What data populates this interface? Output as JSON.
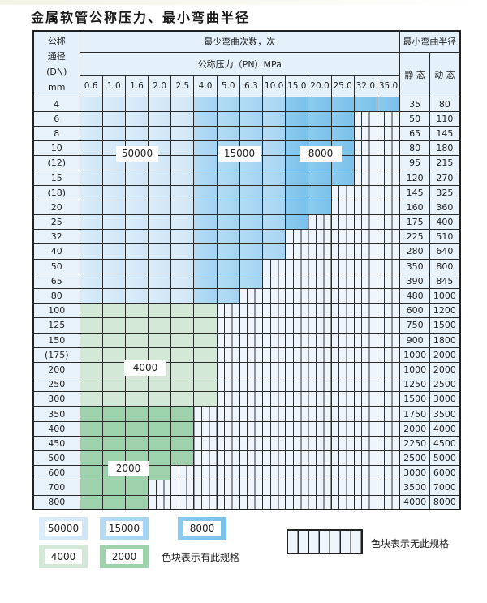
{
  "title": "金属软管公称压力、最小弯曲半径",
  "header": {
    "dn_label_lines": [
      "公称",
      "通径",
      "(DN)",
      "mm"
    ],
    "cycles_label": "最少弯曲次数，次",
    "pressure_label": "公称压力（PN）MPa",
    "radius_label": "最小弯曲半径",
    "static_label": "静 态",
    "dynamic_label": "动 态",
    "pressures": [
      "0.6",
      "1.0",
      "1.6",
      "2.0",
      "2.5",
      "4.0",
      "5.0",
      "6.3",
      "10.0",
      "15.0",
      "20.0",
      "25.0",
      "32.0",
      "35.0"
    ]
  },
  "zone_colors": {
    "z50000": "#d6eaf8",
    "z15000": "#aad7f3",
    "z8000": "#80c5ec",
    "z4000": "#d3e8d6",
    "z2000": "#9ed2ac",
    "none": "#eef5fc"
  },
  "rows": [
    {
      "dn": "4",
      "runs": [
        [
          "z50000",
          5
        ],
        [
          "z15000",
          4
        ],
        [
          "z8000",
          5
        ]
      ],
      "static": "35",
      "dynamic": "80"
    },
    {
      "dn": "6",
      "runs": [
        [
          "z50000",
          5
        ],
        [
          "z15000",
          4
        ],
        [
          "z8000",
          3
        ]
      ],
      "static": "50",
      "dynamic": "110"
    },
    {
      "dn": "8",
      "runs": [
        [
          "z50000",
          5
        ],
        [
          "z15000",
          4
        ],
        [
          "z8000",
          3
        ]
      ],
      "static": "65",
      "dynamic": "145"
    },
    {
      "dn": "10",
      "runs": [
        [
          "z50000",
          5
        ],
        [
          "z15000",
          4
        ],
        [
          "z8000",
          3
        ]
      ],
      "static": "80",
      "dynamic": "180"
    },
    {
      "dn": "(12)",
      "runs": [
        [
          "z50000",
          5
        ],
        [
          "z15000",
          4
        ],
        [
          "z8000",
          3
        ]
      ],
      "static": "95",
      "dynamic": "215"
    },
    {
      "dn": "15",
      "runs": [
        [
          "z50000",
          5
        ],
        [
          "z15000",
          4
        ],
        [
          "z8000",
          3
        ]
      ],
      "static": "120",
      "dynamic": "270"
    },
    {
      "dn": "(18)",
      "runs": [
        [
          "z50000",
          5
        ],
        [
          "z15000",
          4
        ],
        [
          "z8000",
          2
        ]
      ],
      "static": "145",
      "dynamic": "325"
    },
    {
      "dn": "20",
      "runs": [
        [
          "z50000",
          5
        ],
        [
          "z15000",
          4
        ],
        [
          "z8000",
          2
        ]
      ],
      "static": "160",
      "dynamic": "360"
    },
    {
      "dn": "25",
      "runs": [
        [
          "z50000",
          5
        ],
        [
          "z15000",
          4
        ],
        [
          "z8000",
          1
        ]
      ],
      "static": "175",
      "dynamic": "400"
    },
    {
      "dn": "32",
      "runs": [
        [
          "z50000",
          5
        ],
        [
          "z15000",
          4
        ]
      ],
      "static": "225",
      "dynamic": "510"
    },
    {
      "dn": "40",
      "runs": [
        [
          "z50000",
          5
        ],
        [
          "z15000",
          4
        ]
      ],
      "static": "280",
      "dynamic": "640"
    },
    {
      "dn": "50",
      "runs": [
        [
          "z50000",
          5
        ],
        [
          "z15000",
          3
        ]
      ],
      "static": "350",
      "dynamic": "800"
    },
    {
      "dn": "65",
      "runs": [
        [
          "z50000",
          5
        ],
        [
          "z15000",
          3
        ]
      ],
      "static": "390",
      "dynamic": "845"
    },
    {
      "dn": "80",
      "runs": [
        [
          "z50000",
          5
        ],
        [
          "z15000",
          2
        ]
      ],
      "static": "480",
      "dynamic": "1000"
    },
    {
      "dn": "100",
      "runs": [
        [
          "z4000",
          6
        ]
      ],
      "static": "600",
      "dynamic": "1200"
    },
    {
      "dn": "125",
      "runs": [
        [
          "z4000",
          6
        ]
      ],
      "static": "750",
      "dynamic": "1500"
    },
    {
      "dn": "150",
      "runs": [
        [
          "z4000",
          6
        ]
      ],
      "static": "900",
      "dynamic": "1800"
    },
    {
      "dn": "(175)",
      "runs": [
        [
          "z4000",
          6
        ]
      ],
      "static": "1000",
      "dynamic": "2000"
    },
    {
      "dn": "200",
      "runs": [
        [
          "z4000",
          6
        ]
      ],
      "static": "1000",
      "dynamic": "2000"
    },
    {
      "dn": "250",
      "runs": [
        [
          "z4000",
          6
        ]
      ],
      "static": "1250",
      "dynamic": "2500"
    },
    {
      "dn": "300",
      "runs": [
        [
          "z4000",
          6
        ]
      ],
      "static": "1500",
      "dynamic": "3000"
    },
    {
      "dn": "350",
      "runs": [
        [
          "z2000",
          5
        ]
      ],
      "static": "1750",
      "dynamic": "3500"
    },
    {
      "dn": "400",
      "runs": [
        [
          "z2000",
          5
        ]
      ],
      "static": "2000",
      "dynamic": "4000"
    },
    {
      "dn": "450",
      "runs": [
        [
          "z2000",
          5
        ]
      ],
      "static": "2250",
      "dynamic": "4500"
    },
    {
      "dn": "500",
      "runs": [
        [
          "z2000",
          5
        ]
      ],
      "static": "2500",
      "dynamic": "5000"
    },
    {
      "dn": "600",
      "runs": [
        [
          "z2000",
          4
        ]
      ],
      "static": "3000",
      "dynamic": "6000"
    },
    {
      "dn": "700",
      "runs": [
        [
          "z2000",
          3
        ]
      ],
      "static": "3500",
      "dynamic": "7000"
    },
    {
      "dn": "800",
      "runs": [
        [
          "z2000",
          3
        ]
      ],
      "static": "4000",
      "dynamic": "8000"
    }
  ],
  "zone_labels": {
    "z50000": "50000",
    "z15000": "15000",
    "z8000": "8000",
    "z4000": "4000",
    "z2000": "2000"
  },
  "legend": {
    "items": [
      "50000",
      "15000",
      "8000",
      "4000",
      "2000"
    ],
    "has_spec_text": "色块表示有此规格",
    "no_spec_text": "色块表示无此规格"
  }
}
